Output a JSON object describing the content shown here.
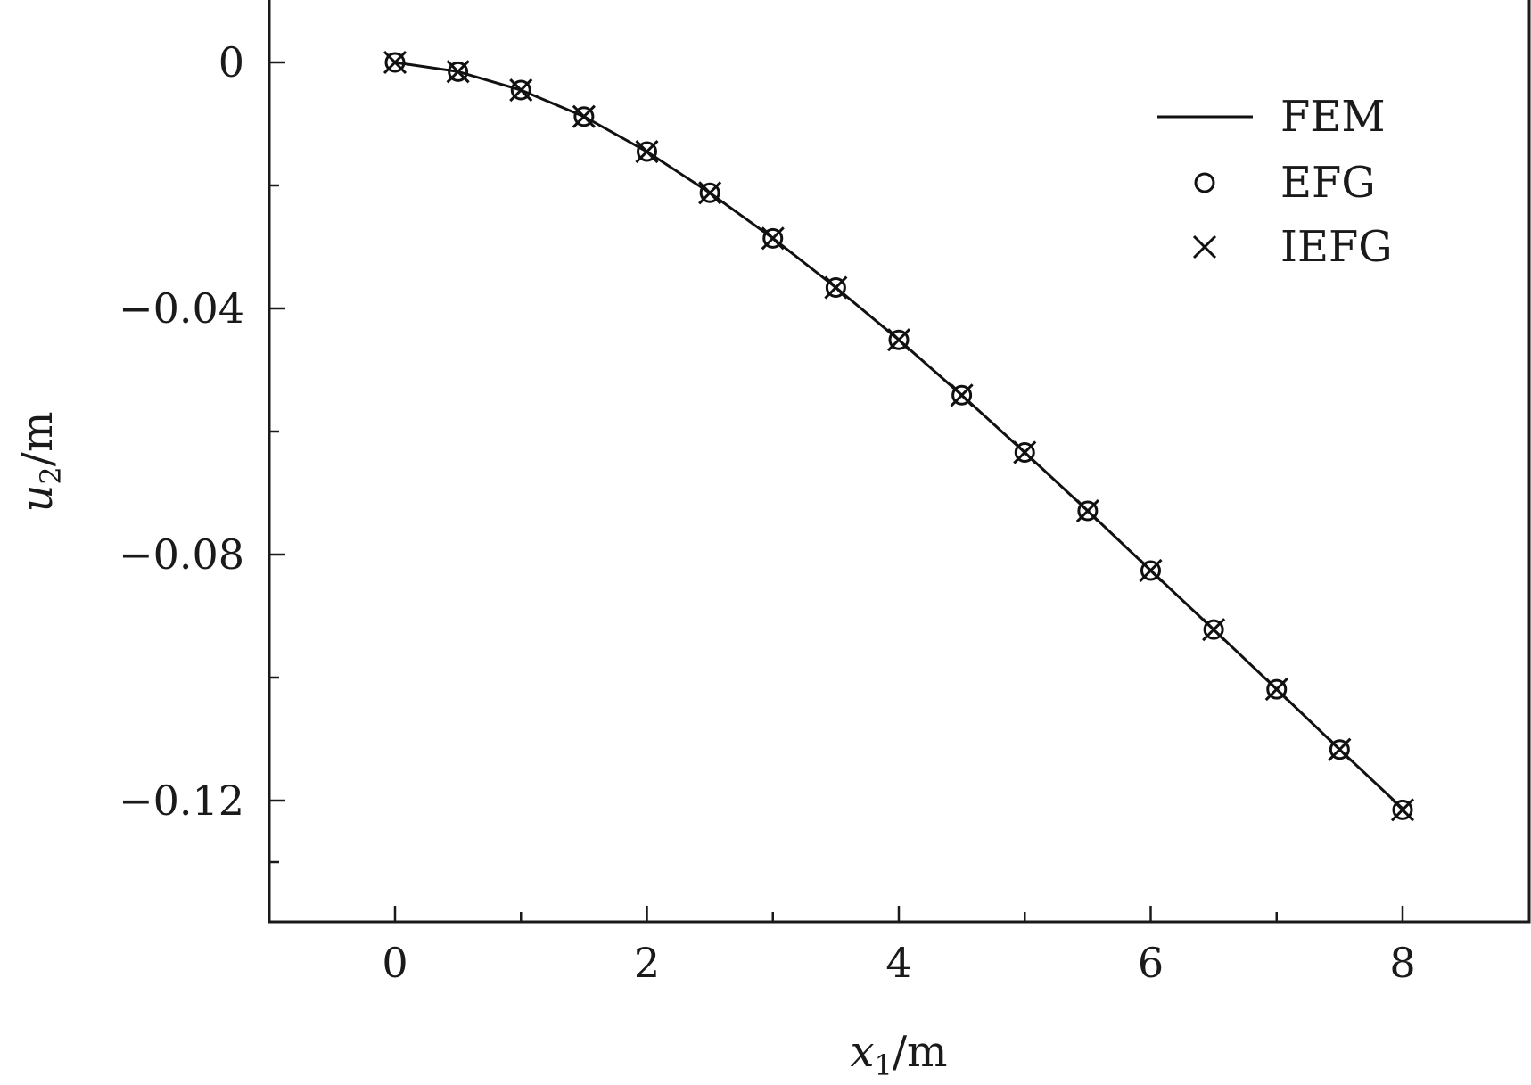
{
  "chart_data": {
    "type": "line",
    "xlabel_var": "x",
    "xlabel_sub": "1",
    "xlabel_unit": "/m",
    "ylabel_var": "u",
    "ylabel_sub": "2",
    "ylabel_unit": "/m",
    "xlim": [
      -1,
      9
    ],
    "ylim": [
      -0.14,
      0.02
    ],
    "x_ticks": [
      0,
      2,
      4,
      6,
      8
    ],
    "x_tick_labels": [
      "0",
      "2",
      "4",
      "6",
      "8"
    ],
    "x_minor_ticks": [
      1,
      3,
      5,
      7
    ],
    "y_ticks": [
      0,
      -0.04,
      -0.08,
      -0.12
    ],
    "y_tick_labels": [
      "0",
      "−0.04",
      "−0.08",
      "−0.12"
    ],
    "y_minor_ticks": [
      -0.02,
      -0.06,
      -0.1,
      -0.13
    ],
    "legend_position": "top-right",
    "x": [
      0,
      0.5,
      1,
      1.5,
      2,
      2.5,
      3,
      3.5,
      4,
      4.5,
      5,
      5.5,
      6,
      6.5,
      7,
      7.5,
      8
    ],
    "series": [
      {
        "name": "FEM",
        "style": "line",
        "values": [
          0,
          -0.0015,
          -0.0045,
          -0.0088,
          -0.0145,
          -0.0212,
          -0.0286,
          -0.0366,
          -0.0451,
          -0.0541,
          -0.0634,
          -0.0729,
          -0.0826,
          -0.0922,
          -0.1019,
          -0.1117,
          -0.1213
        ]
      },
      {
        "name": "EFG",
        "style": "circle",
        "values": [
          0,
          -0.0015,
          -0.0045,
          -0.0088,
          -0.0145,
          -0.0212,
          -0.0286,
          -0.0366,
          -0.0451,
          -0.0541,
          -0.0634,
          -0.0729,
          -0.0826,
          -0.0922,
          -0.1019,
          -0.1117,
          -0.1215
        ]
      },
      {
        "name": "IEFG",
        "style": "cross",
        "values": [
          0,
          -0.0015,
          -0.0045,
          -0.0088,
          -0.0145,
          -0.0212,
          -0.0286,
          -0.0366,
          -0.0451,
          -0.0541,
          -0.0634,
          -0.0729,
          -0.0826,
          -0.0922,
          -0.1019,
          -0.1117,
          -0.1215
        ]
      }
    ]
  }
}
